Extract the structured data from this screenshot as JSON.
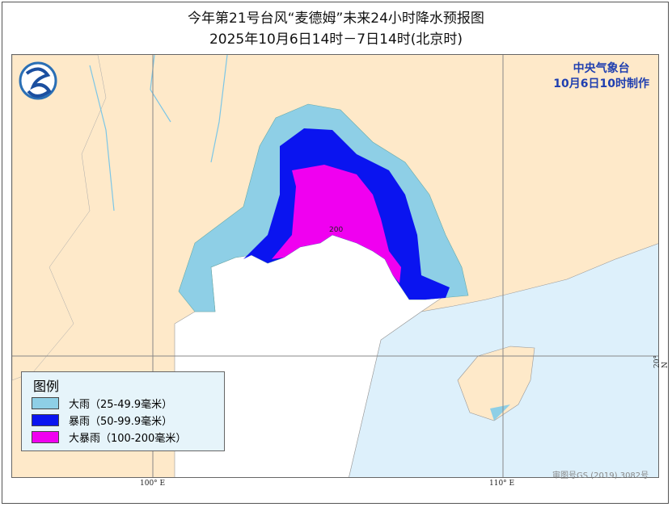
{
  "title": "今年第21号台风“麦德姆”未来24小时降水预报图",
  "subtitle": "2025年10月6日14时－7日14时(北京时)",
  "agency": {
    "name": "中央气象台",
    "issued": "10月6日10时制作"
  },
  "logo_icon": "cma-logo-icon",
  "contour_label": "200",
  "legend": {
    "title": "图例",
    "items": [
      {
        "label": "大雨（25-49.9毫米）",
        "color": "#8ecfe6"
      },
      {
        "label": "暴雨（50-99.9毫米）",
        "color": "#0a14f0"
      },
      {
        "label": "大暴雨（100-200毫米）",
        "color": "#f000f0"
      }
    ]
  },
  "axes": {
    "lon_100": "100° E",
    "lon_110": "110° E",
    "lat_20": "20° N"
  },
  "map_approval": "审图号GS (2019) 3082号",
  "colors": {
    "land": "#fee9c9",
    "sea": "#ddf0fb",
    "foreign": "#ffffff"
  }
}
